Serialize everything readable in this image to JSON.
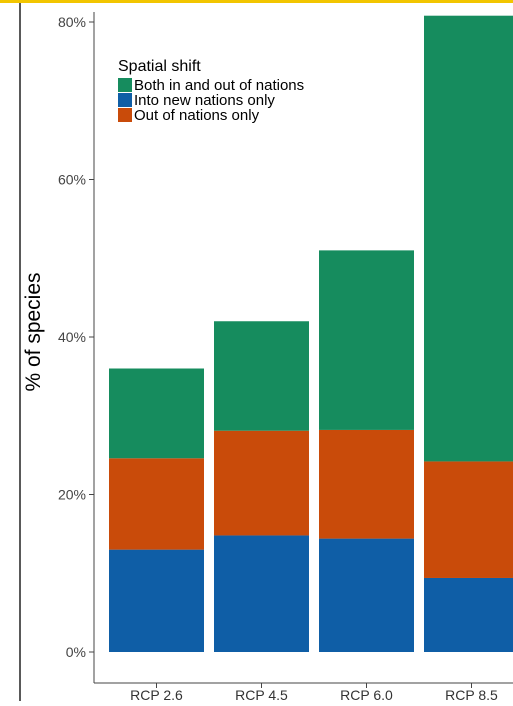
{
  "chart_data": {
    "type": "bar",
    "stacked": true,
    "categories": [
      "RCP 2.6",
      "RCP 4.5",
      "RCP 6.0",
      "RCP 8.5"
    ],
    "series": [
      {
        "name": "Into new nations only",
        "color": "#0f5ea6",
        "values": [
          13.0,
          14.8,
          14.4,
          9.4
        ]
      },
      {
        "name": "Out of nations only",
        "color": "#c94b0a",
        "values": [
          11.6,
          13.3,
          13.8,
          14.8
        ]
      },
      {
        "name": "Both in and out of nations",
        "color": "#168c5e",
        "values": [
          11.4,
          13.9,
          22.8,
          56.6
        ]
      }
    ],
    "ylabel": "% of species",
    "xlabel": "",
    "ylim": [
      0,
      80
    ],
    "yticks": [
      "0%",
      "20%",
      "40%",
      "60%",
      "80%"
    ],
    "ytick_values": [
      0,
      20,
      40,
      60,
      80
    ],
    "legend": {
      "title": "Spatial shift",
      "placement": "top-left",
      "entries": [
        "Both in and out of nations",
        "Into new nations only",
        "Out of nations only"
      ],
      "colors": [
        "#168c5e",
        "#0f5ea6",
        "#c94b0a"
      ]
    },
    "grid": false
  }
}
